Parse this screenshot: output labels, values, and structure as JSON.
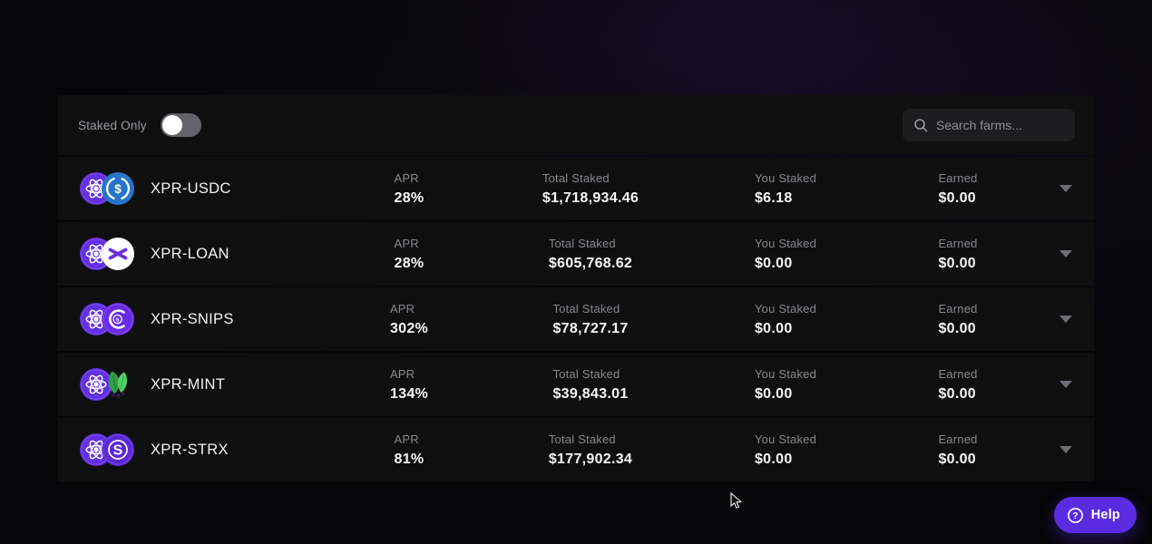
{
  "toolbar": {
    "staked_only_label": "Staked Only",
    "toggle_state": "off",
    "search": {
      "placeholder": "Search farms...",
      "icon": "search-icon"
    }
  },
  "columns": {
    "apr": "APR",
    "total_staked": "Total Staked",
    "you_staked": "You Staked",
    "earned": "Earned"
  },
  "farms": [
    {
      "pair": "XPR-USDC",
      "icons": [
        "xpr-icon",
        "usdc-icon"
      ],
      "apr": "28%",
      "total_staked": "$1,718,934.46",
      "you_staked": "$6.18",
      "earned": "$0.00",
      "expand_icon": "chevron-down-icon"
    },
    {
      "pair": "XPR-LOAN",
      "icons": [
        "xpr-icon",
        "loan-icon"
      ],
      "apr": "28%",
      "total_staked": "$605,768.62",
      "you_staked": "$0.00",
      "earned": "$0.00",
      "expand_icon": "chevron-down-icon"
    },
    {
      "pair": "XPR-SNIPS",
      "icons": [
        "xpr-icon",
        "snips-icon"
      ],
      "apr": "302%",
      "total_staked": "$78,727.17",
      "you_staked": "$0.00",
      "earned": "$0.00",
      "expand_icon": "chevron-down-icon"
    },
    {
      "pair": "XPR-MINT",
      "icons": [
        "xpr-icon",
        "mint-icon"
      ],
      "apr": "134%",
      "total_staked": "$39,843.01",
      "you_staked": "$0.00",
      "earned": "$0.00",
      "expand_icon": "chevron-down-icon"
    },
    {
      "pair": "XPR-STRX",
      "icons": [
        "xpr-icon",
        "strx-icon"
      ],
      "apr": "81%",
      "total_staked": "$177,902.34",
      "you_staked": "$0.00",
      "earned": "$0.00",
      "expand_icon": "chevron-down-icon"
    }
  ],
  "help": {
    "label": "Help",
    "icon": "question-icon"
  },
  "colors": {
    "accent_purple": "#5a2be0",
    "xpr_purple": "#6230e0",
    "usdc_blue": "#2775ca",
    "mint_green": "#3fbf5a",
    "page_background": "#060608",
    "row_background": "#0f0f10",
    "label_gray": "#88888e",
    "value_white": "#f7f7f9"
  }
}
